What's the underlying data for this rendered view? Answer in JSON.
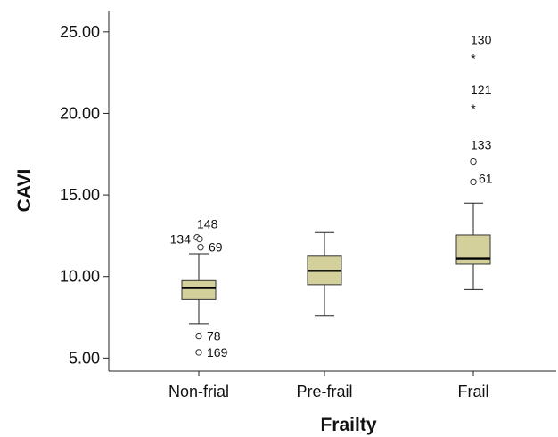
{
  "chart_data": {
    "type": "boxplot",
    "xlabel": "Frailty",
    "ylabel": "CAVI",
    "ylim": [
      4.2,
      26.3
    ],
    "yticks": [
      5,
      10,
      15,
      20,
      25
    ],
    "ytick_labels": [
      "5.00",
      "10.00",
      "15.00",
      "20.00",
      "25.00"
    ],
    "box_color": "#d4d09c",
    "grid": false,
    "categories": [
      "Non-frial",
      "Pre-frail",
      "Frail"
    ],
    "boxes": [
      {
        "category": "Non-frial",
        "whisker_low": 7.1,
        "q1": 8.6,
        "median": 9.3,
        "q3": 9.75,
        "whisker_high": 11.4,
        "outliers": [
          {
            "value": 12.4,
            "marker": "circle",
            "label": "148"
          },
          {
            "value": 12.3,
            "marker": "circle",
            "label": "134"
          },
          {
            "value": 11.8,
            "marker": "circle",
            "label": "69"
          },
          {
            "value": 6.35,
            "marker": "circle",
            "label": "78"
          },
          {
            "value": 5.35,
            "marker": "circle",
            "label": "169"
          }
        ]
      },
      {
        "category": "Pre-frail",
        "whisker_low": 7.6,
        "q1": 9.5,
        "median": 10.35,
        "q3": 11.25,
        "whisker_high": 12.7,
        "outliers": []
      },
      {
        "category": "Frail",
        "whisker_low": 9.2,
        "q1": 10.75,
        "median": 11.1,
        "q3": 12.55,
        "whisker_high": 14.5,
        "outliers": [
          {
            "value": 23.5,
            "marker": "star",
            "label": "130"
          },
          {
            "value": 20.4,
            "marker": "star",
            "label": "121"
          },
          {
            "value": 17.05,
            "marker": "circle",
            "label": "133"
          },
          {
            "value": 15.8,
            "marker": "circle",
            "label": "61"
          }
        ]
      }
    ]
  }
}
